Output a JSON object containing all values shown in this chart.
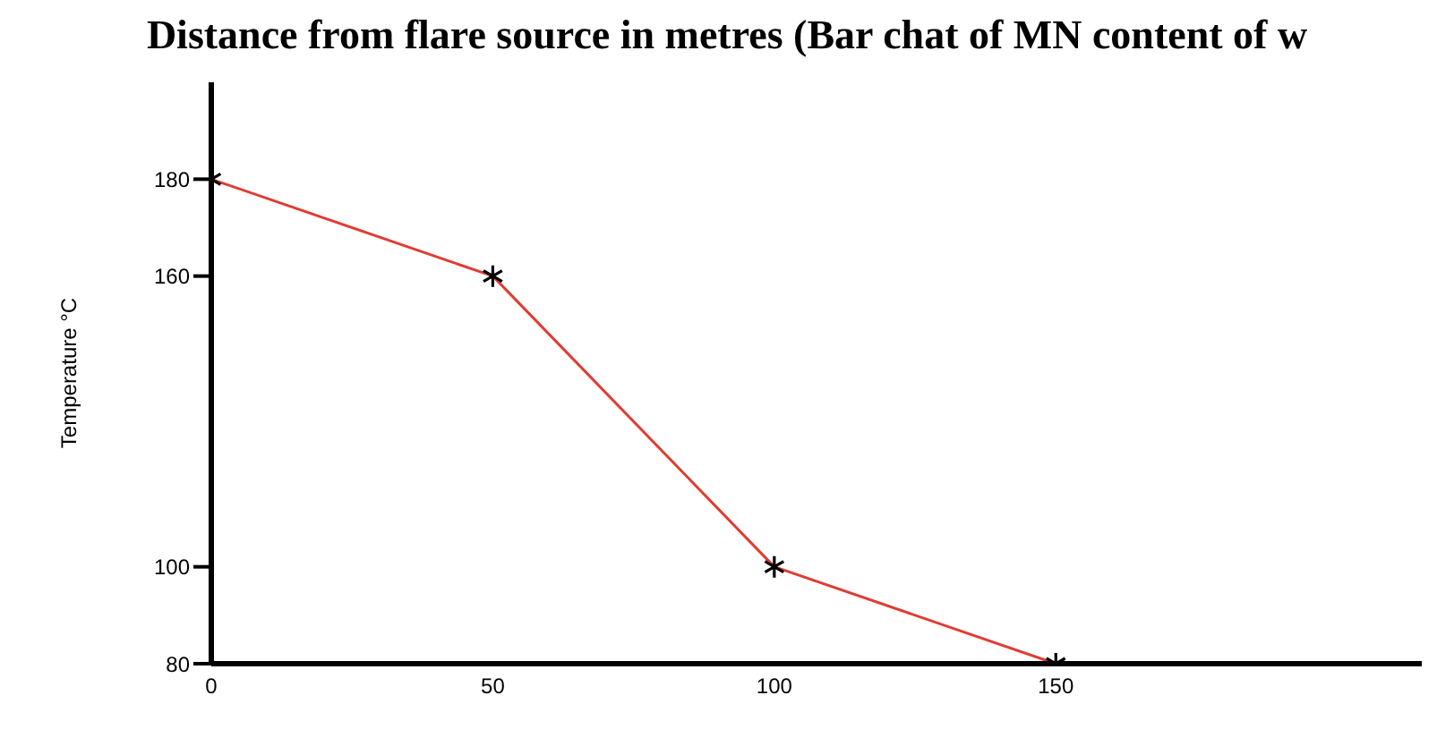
{
  "chart_data": {
    "type": "line",
    "title": "Distance from flare source in metres (Bar chat of MN content of w",
    "ylabel": "Temperature °C",
    "x": [
      0,
      50,
      100,
      150
    ],
    "series": [
      {
        "color": "#e03c31",
        "values": [
          180,
          160,
          100,
          80
        ]
      }
    ],
    "xlim": [
      0,
      215
    ],
    "xticks": [
      0,
      50,
      100,
      150
    ],
    "ylim": [
      80,
      200
    ],
    "yticks": [
      80,
      100,
      160,
      180
    ],
    "marker": "cross",
    "grid": false,
    "legend": false
  }
}
